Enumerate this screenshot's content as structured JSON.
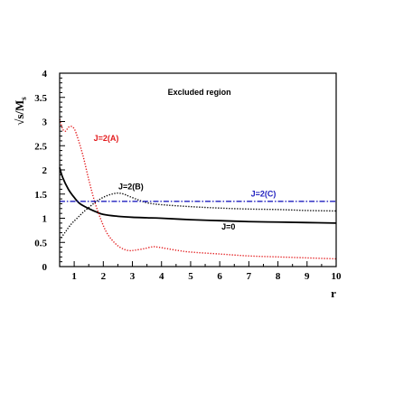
{
  "chart_data": {
    "type": "line",
    "xlabel": "r",
    "ylabel": "√s/M",
    "ylabel_subscript": "s",
    "xlim": [
      0.5,
      10
    ],
    "ylim": [
      0,
      4
    ],
    "x_ticks": [
      "1",
      "2",
      "3",
      "4",
      "5",
      "6",
      "7",
      "8",
      "9",
      "10"
    ],
    "y_ticks": [
      "0",
      "0.5",
      "1",
      "1.5",
      "2",
      "2.5",
      "3",
      "3.5",
      "4"
    ],
    "grid": false,
    "annotations": [
      {
        "text": "Excluded region",
        "x": 5.3,
        "y": 3.55,
        "color": "#000000"
      },
      {
        "text": "J=2(A)",
        "x": 2.1,
        "y": 2.6,
        "color": "#e31a1c"
      },
      {
        "text": "J=2(B)",
        "x": 2.95,
        "y": 1.6,
        "color": "#000000"
      },
      {
        "text": "J=2(C)",
        "x": 7.5,
        "y": 1.45,
        "color": "#1f1fbf"
      },
      {
        "text": "J=0",
        "x": 6.3,
        "y": 0.77,
        "color": "#000000"
      }
    ],
    "series": [
      {
        "name": "J=0",
        "style": "solid",
        "color": "#000000",
        "x": [
          0.5,
          0.6,
          0.8,
          1.0,
          1.2,
          1.5,
          1.8,
          2.0,
          2.5,
          3.0,
          3.5,
          4.0,
          5.0,
          6.0,
          7.0,
          8.0,
          9.0,
          10.0
        ],
        "y": [
          2.05,
          1.85,
          1.6,
          1.43,
          1.3,
          1.2,
          1.12,
          1.08,
          1.04,
          1.02,
          1.01,
          1.0,
          0.97,
          0.95,
          0.93,
          0.92,
          0.91,
          0.9
        ]
      },
      {
        "name": "J=2(A)",
        "style": "dotted",
        "color": "#e31a1c",
        "x": [
          0.5,
          0.6,
          0.7,
          0.8,
          0.9,
          1.0,
          1.1,
          1.3,
          1.5,
          1.7,
          1.9,
          2.1,
          2.3,
          2.5,
          2.7,
          2.9,
          3.1,
          3.4,
          3.7,
          3.9,
          4.2,
          4.6,
          5.0,
          6.0,
          7.0,
          8.0,
          9.0,
          10.0
        ],
        "y": [
          3.05,
          2.85,
          2.8,
          2.88,
          2.9,
          2.85,
          2.7,
          2.3,
          1.8,
          1.35,
          1.0,
          0.72,
          0.55,
          0.43,
          0.36,
          0.33,
          0.34,
          0.37,
          0.41,
          0.4,
          0.37,
          0.33,
          0.3,
          0.26,
          0.22,
          0.2,
          0.18,
          0.16
        ]
      },
      {
        "name": "J=2(B)",
        "style": "dotted",
        "color": "#000000",
        "x": [
          0.5,
          0.7,
          0.9,
          1.1,
          1.3,
          1.5,
          1.7,
          1.9,
          2.1,
          2.3,
          2.5,
          2.7,
          2.9,
          3.2,
          3.5,
          4.0,
          5.0,
          6.0,
          7.0,
          8.0,
          9.0,
          10.0
        ],
        "y": [
          0.55,
          0.72,
          0.88,
          1.0,
          1.12,
          1.22,
          1.32,
          1.4,
          1.46,
          1.5,
          1.52,
          1.5,
          1.45,
          1.38,
          1.32,
          1.28,
          1.24,
          1.21,
          1.19,
          1.18,
          1.16,
          1.15
        ]
      },
      {
        "name": "J=2(C)",
        "style": "dash-dot",
        "color": "#1f1fbf",
        "x": [
          0.5,
          10
        ],
        "y": [
          1.35,
          1.35
        ]
      }
    ]
  }
}
